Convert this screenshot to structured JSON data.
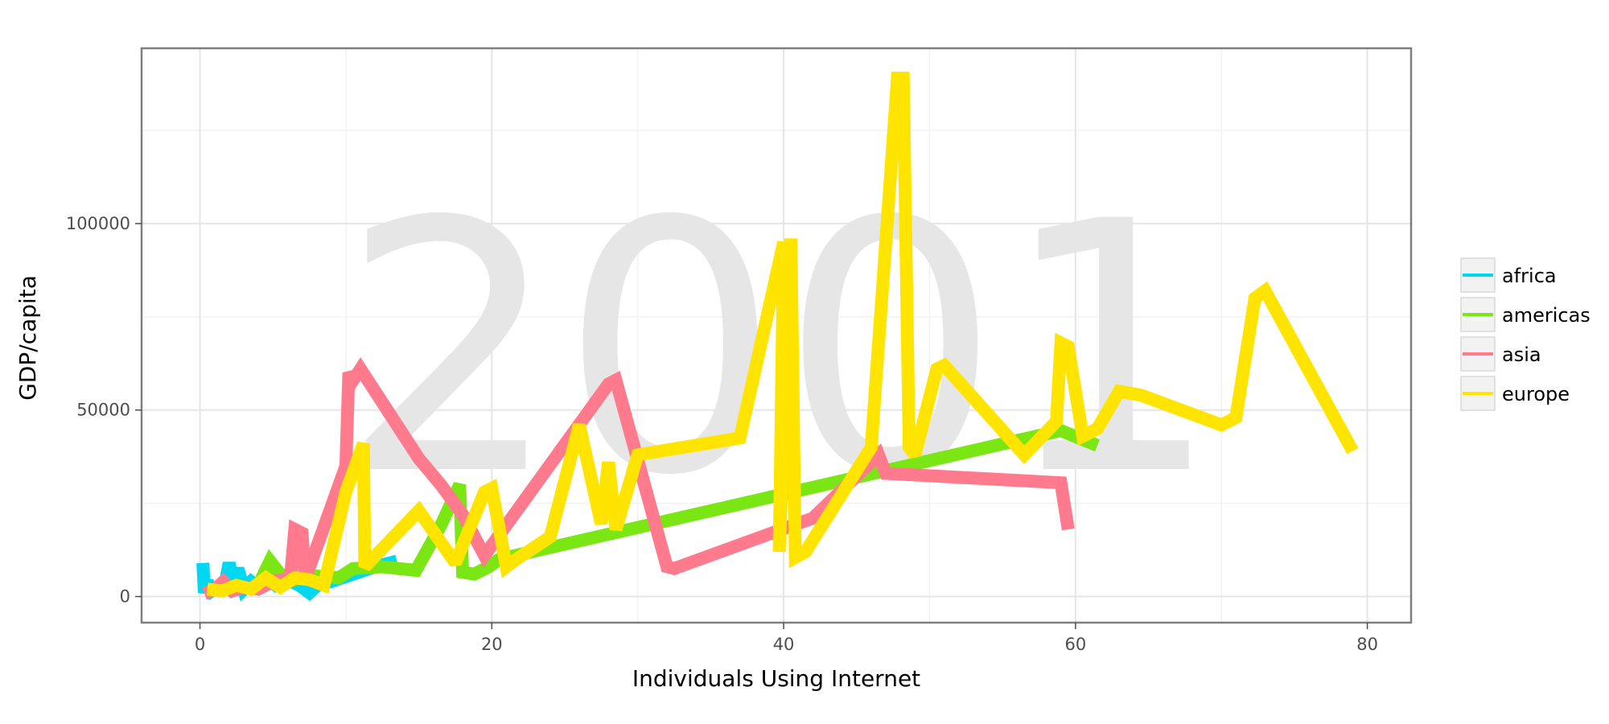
{
  "chart_data": {
    "type": "line",
    "title": "",
    "watermark": "2001",
    "xlabel": "Individuals Using Internet",
    "ylabel": "GDP/capita",
    "xlim": [
      -4,
      83
    ],
    "ylim": [
      -7000,
      147000
    ],
    "x_ticks": [
      0,
      20,
      40,
      60,
      80
    ],
    "y_ticks": [
      0,
      50000,
      100000
    ],
    "grid": true,
    "legend_position": "right",
    "series": [
      {
        "name": "africa",
        "color": "#00d7f0",
        "points": [
          [
            0.2,
            9000
          ],
          [
            0.3,
            1000
          ],
          [
            0.5,
            4000
          ],
          [
            0.8,
            1500
          ],
          [
            1.2,
            2500
          ],
          [
            1.6,
            1000
          ],
          [
            2.0,
            9000
          ],
          [
            2.3,
            3000
          ],
          [
            2.6,
            7500
          ],
          [
            3.0,
            2000
          ],
          [
            3.5,
            4000
          ],
          [
            4.0,
            2500
          ],
          [
            4.6,
            5000
          ],
          [
            5.2,
            3000
          ],
          [
            6.0,
            4500
          ],
          [
            6.8,
            3000
          ],
          [
            7.5,
            1000
          ],
          [
            8.2,
            3500
          ],
          [
            9.0,
            4000
          ],
          [
            10.5,
            6000
          ],
          [
            12.0,
            8000
          ],
          [
            13.5,
            9500
          ]
        ]
      },
      {
        "name": "americas",
        "color": "#7ae614",
        "points": [
          [
            4.0,
            3000
          ],
          [
            4.8,
            9500
          ],
          [
            5.5,
            6000
          ],
          [
            6.5,
            4500
          ],
          [
            8.0,
            5500
          ],
          [
            9.5,
            5000
          ],
          [
            10.5,
            7500
          ],
          [
            12.5,
            8000
          ],
          [
            14.8,
            7000
          ],
          [
            16.5,
            19000
          ],
          [
            17.8,
            30000
          ],
          [
            18.0,
            6500
          ],
          [
            18.8,
            6000
          ],
          [
            19.8,
            8000
          ],
          [
            20.5,
            10000
          ],
          [
            59.0,
            44500
          ],
          [
            61.5,
            40500
          ]
        ]
      },
      {
        "name": "asia",
        "color": "#ff7a8c",
        "points": [
          [
            0.3,
            800
          ],
          [
            1.0,
            1800
          ],
          [
            1.6,
            4000
          ],
          [
            2.2,
            1500
          ],
          [
            3.0,
            2500
          ],
          [
            4.0,
            2000
          ],
          [
            5.0,
            4000
          ],
          [
            6.2,
            5000
          ],
          [
            6.5,
            18000
          ],
          [
            7.0,
            17000
          ],
          [
            7.2,
            4500
          ],
          [
            10.0,
            35000
          ],
          [
            10.2,
            60000
          ],
          [
            10.5,
            58000
          ],
          [
            11.0,
            61000
          ],
          [
            15.0,
            37000
          ],
          [
            16.5,
            30000
          ],
          [
            18.0,
            22000
          ],
          [
            19.5,
            11000
          ],
          [
            28.0,
            57000
          ],
          [
            28.5,
            58000
          ],
          [
            32.0,
            8000
          ],
          [
            32.5,
            7500
          ],
          [
            42.0,
            21000
          ],
          [
            46.5,
            38000
          ],
          [
            47.0,
            33000
          ],
          [
            59.0,
            30500
          ],
          [
            59.5,
            18000
          ]
        ]
      },
      {
        "name": "europe",
        "color": "#ffe400",
        "points": [
          [
            0.5,
            2000
          ],
          [
            1.5,
            1500
          ],
          [
            2.5,
            3000
          ],
          [
            3.5,
            2000
          ],
          [
            4.5,
            5000
          ],
          [
            5.5,
            2500
          ],
          [
            6.5,
            5000
          ],
          [
            7.5,
            4500
          ],
          [
            8.5,
            3000
          ],
          [
            10.0,
            28000
          ],
          [
            11.2,
            41000
          ],
          [
            11.3,
            8000
          ],
          [
            15.0,
            23000
          ],
          [
            17.5,
            9000
          ],
          [
            19.5,
            28000
          ],
          [
            20.0,
            29000
          ],
          [
            21.0,
            8000
          ],
          [
            21.5,
            9500
          ],
          [
            24.0,
            16000
          ],
          [
            26.0,
            46000
          ],
          [
            27.5,
            19500
          ],
          [
            28.0,
            36000
          ],
          [
            28.5,
            18000
          ],
          [
            30.0,
            38000
          ],
          [
            37.0,
            42500
          ],
          [
            40.0,
            95000
          ],
          [
            39.7,
            12000
          ],
          [
            40.5,
            96000
          ],
          [
            40.8,
            10500
          ],
          [
            41.5,
            12000
          ],
          [
            46.0,
            40000
          ],
          [
            47.8,
            139000
          ],
          [
            48.2,
            139000
          ],
          [
            48.6,
            40000
          ],
          [
            49.0,
            38000
          ],
          [
            50.5,
            61000
          ],
          [
            51.0,
            62000
          ],
          [
            56.5,
            38000
          ],
          [
            58.7,
            47000
          ],
          [
            59.0,
            68000
          ],
          [
            59.5,
            67000
          ],
          [
            60.5,
            43000
          ],
          [
            61.5,
            45000
          ],
          [
            63.0,
            55000
          ],
          [
            64.5,
            54000
          ],
          [
            70.0,
            46000
          ],
          [
            71.0,
            48000
          ],
          [
            72.3,
            80000
          ],
          [
            73.0,
            82000
          ],
          [
            79.0,
            39000
          ]
        ]
      }
    ]
  }
}
